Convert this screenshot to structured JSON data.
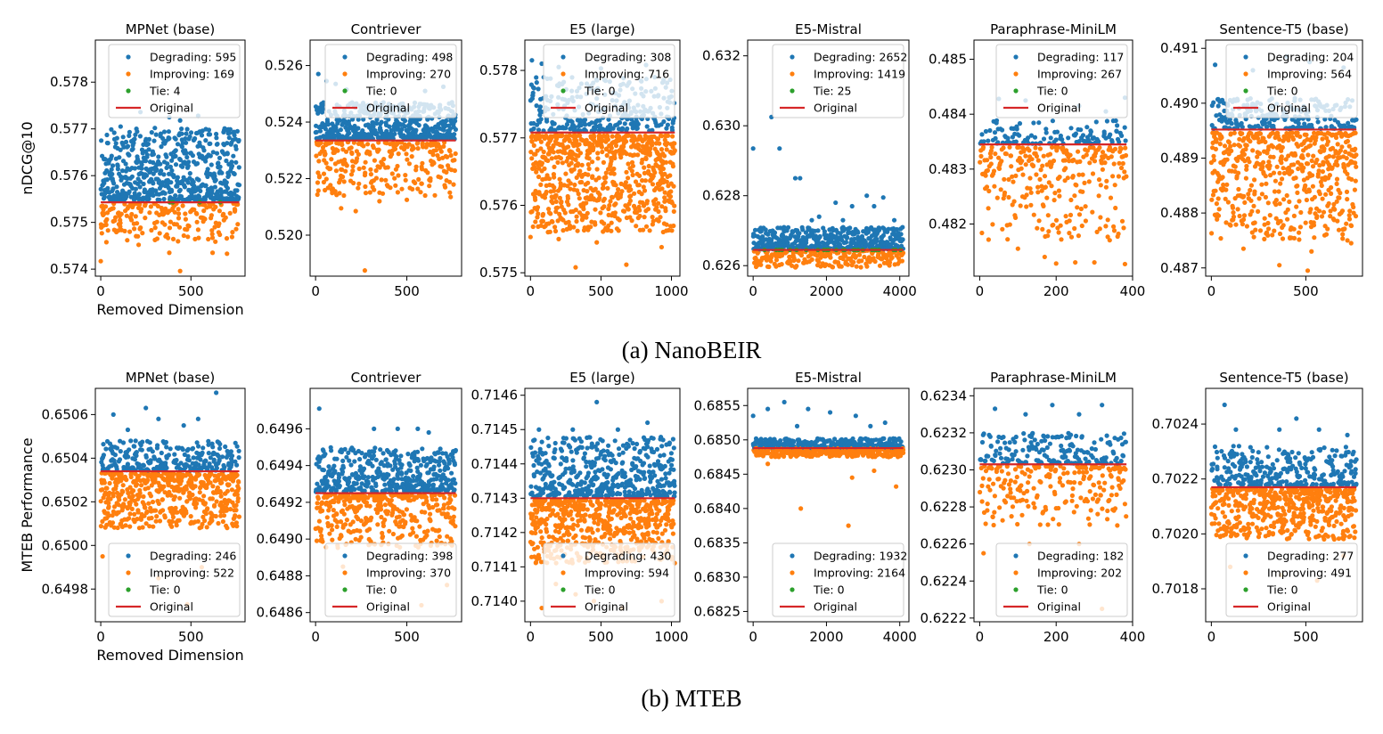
{
  "colors": {
    "degrading": "#1f77b4",
    "improving": "#ff7f0e",
    "tie": "#2ca02c",
    "original": "#d62728"
  },
  "captions": [
    "(a) NanoBEIR",
    "(b) MTEB"
  ],
  "chart_data": [
    {
      "type": "scatter",
      "row": 0,
      "col": 0,
      "title": "MPNet (base)",
      "xlabel": "Removed Dimension",
      "ylabel": "nDCG@10",
      "dims": 768,
      "original": 0.57543,
      "xlim": [
        -30,
        800
      ],
      "ylim": [
        0.57385,
        0.5789
      ],
      "xticks": [
        0,
        500
      ],
      "yticks": [
        0.574,
        0.575,
        0.576,
        0.577,
        0.578
      ],
      "ytick_decimals": 3,
      "up_max": 0.57703,
      "down_min": 0.57457,
      "counts": {
        "degrading": 595,
        "improving": 169,
        "tie": 4
      },
      "legend": [
        "Degrading: 595",
        "Improving: 169",
        "Tie: 4",
        "Original"
      ],
      "legend_loc": "upper right",
      "outliers_up": [
        [
          220,
          0.57736
        ],
        [
          380,
          0.57725
        ],
        [
          440,
          0.57718
        ],
        [
          540,
          0.57728
        ],
        [
          700,
          0.57698
        ],
        [
          110,
          0.57705
        ]
      ],
      "outliers_down": [
        [
          0,
          0.57417
        ],
        [
          440,
          0.57396
        ],
        [
          380,
          0.57435
        ],
        [
          620,
          0.57435
        ],
        [
          700,
          0.57433
        ],
        [
          210,
          0.57452
        ]
      ]
    },
    {
      "type": "scatter",
      "row": 0,
      "col": 1,
      "title": "Contriever",
      "xlabel": "",
      "ylabel": "",
      "dims": 768,
      "original": 0.52335,
      "xlim": [
        -30,
        800
      ],
      "ylim": [
        0.51855,
        0.5269
      ],
      "xticks": [
        0,
        500
      ],
      "yticks": [
        0.52,
        0.522,
        0.524,
        0.526
      ],
      "ytick_decimals": 3,
      "up_max": 0.5247,
      "down_min": 0.5214,
      "counts": {
        "degrading": 498,
        "improving": 270,
        "tie": 0
      },
      "legend": [
        "Degrading: 498",
        "Improving: 270",
        "Tie: 0",
        "Original"
      ],
      "legend_loc": "upper right",
      "outliers_up": [
        [
          15,
          0.5257
        ],
        [
          60,
          0.52545
        ],
        [
          110,
          0.52535
        ],
        [
          170,
          0.52515
        ],
        [
          600,
          0.5251
        ],
        [
          700,
          0.52525
        ]
      ],
      "outliers_down": [
        [
          270,
          0.51875
        ],
        [
          140,
          0.52095
        ],
        [
          220,
          0.52085
        ],
        [
          350,
          0.5212
        ],
        [
          500,
          0.52125
        ],
        [
          740,
          0.52135
        ]
      ]
    },
    {
      "type": "scatter",
      "row": 0,
      "col": 2,
      "title": "E5 (large)",
      "xlabel": "",
      "ylabel": "",
      "dims": 1024,
      "original": 0.57708,
      "xlim": [
        -40,
        1060
      ],
      "ylim": [
        0.57495,
        0.57845
      ],
      "xticks": [
        0,
        500,
        1000
      ],
      "yticks": [
        0.575,
        0.576,
        0.577,
        0.578
      ],
      "ytick_decimals": 3,
      "up_max": 0.5779,
      "down_min": 0.5756,
      "counts": {
        "degrading": 308,
        "improving": 716,
        "tie": 0
      },
      "legend": [
        "Degrading: 308",
        "Improving: 716",
        "Tie: 0",
        "Original"
      ],
      "legend_loc": "upper right",
      "outliers_up": [
        [
          10,
          0.57815
        ],
        [
          80,
          0.5781
        ],
        [
          200,
          0.57805
        ],
        [
          500,
          0.57803
        ],
        [
          820,
          0.57808
        ]
      ],
      "outliers_down": [
        [
          0,
          0.57553
        ],
        [
          320,
          0.57508
        ],
        [
          680,
          0.57512
        ],
        [
          930,
          0.57538
        ],
        [
          200,
          0.5755
        ],
        [
          470,
          0.57545
        ]
      ]
    },
    {
      "type": "scatter",
      "row": 0,
      "col": 3,
      "title": "E5-Mistral",
      "xlabel": "",
      "ylabel": "",
      "dims": 4096,
      "original": 0.62645,
      "xlim": [
        -150,
        4250
      ],
      "ylim": [
        0.6257,
        0.63245
      ],
      "xticks": [
        0,
        2000,
        4000
      ],
      "yticks": [
        0.626,
        0.628,
        0.63,
        0.632
      ],
      "ytick_decimals": 3,
      "up_max": 0.6271,
      "down_min": 0.62595,
      "counts": {
        "degrading": 2652,
        "improving": 1419,
        "tie": 25
      },
      "legend": [
        "Degrading: 2652",
        "Improving: 1419",
        "Tie: 25",
        "Original"
      ],
      "legend_loc": "upper right",
      "outliers_up": [
        [
          0,
          0.62935
        ],
        [
          500,
          0.63025
        ],
        [
          720,
          0.62935
        ],
        [
          1150,
          0.6285
        ],
        [
          1280,
          0.6285
        ],
        [
          1800,
          0.6274
        ],
        [
          2250,
          0.6278
        ],
        [
          2700,
          0.6277
        ],
        [
          3100,
          0.628
        ],
        [
          3300,
          0.6277
        ],
        [
          3550,
          0.62795
        ],
        [
          3850,
          0.6273
        ],
        [
          1600,
          0.6273
        ],
        [
          2450,
          0.6273
        ]
      ],
      "outliers_down": []
    },
    {
      "type": "scatter",
      "row": 0,
      "col": 4,
      "title": "Paraphrase-MiniLM",
      "xlabel": "",
      "ylabel": "",
      "dims": 384,
      "original": 0.48345,
      "xlim": [
        -15,
        400
      ],
      "ylim": [
        0.48105,
        0.48535
      ],
      "xticks": [
        0,
        200,
        400
      ],
      "yticks": [
        0.482,
        0.483,
        0.484,
        0.485
      ],
      "ytick_decimals": 3,
      "up_max": 0.4839,
      "down_min": 0.4817,
      "counts": {
        "degrading": 117,
        "improving": 267,
        "tie": 0
      },
      "legend": [
        "Degrading: 117",
        "Improving: 267",
        "Tie: 0",
        "Original"
      ],
      "legend_loc": "upper right",
      "outliers_up": [
        [
          50,
          0.48428
        ],
        [
          120,
          0.48425
        ],
        [
          260,
          0.48415
        ],
        [
          380,
          0.4843
        ],
        [
          330,
          0.48405
        ]
      ],
      "outliers_down": [
        [
          170,
          0.4814
        ],
        [
          200,
          0.48128
        ],
        [
          250,
          0.4813
        ],
        [
          300,
          0.4813
        ],
        [
          380,
          0.48127
        ],
        [
          100,
          0.48155
        ]
      ]
    },
    {
      "type": "scatter",
      "row": 0,
      "col": 5,
      "title": "Sentence-T5 (base)",
      "xlabel": "",
      "ylabel": "",
      "dims": 768,
      "original": 0.48952,
      "xlim": [
        -30,
        800
      ],
      "ylim": [
        0.48685,
        0.49115
      ],
      "xticks": [
        0,
        500
      ],
      "yticks": [
        0.487,
        0.488,
        0.489,
        0.49,
        0.491
      ],
      "ytick_decimals": 3,
      "up_max": 0.4901,
      "down_min": 0.4875,
      "counts": {
        "degrading": 204,
        "improving": 564,
        "tie": 0
      },
      "legend": [
        "Degrading: 204",
        "Improving: 564",
        "Tie: 0",
        "Original"
      ],
      "legend_loc": "upper right",
      "outliers_up": [
        [
          20,
          0.4907
        ],
        [
          220,
          0.4906
        ],
        [
          400,
          0.49085
        ],
        [
          520,
          0.49075
        ],
        [
          700,
          0.49065
        ]
      ],
      "outliers_down": [
        [
          360,
          0.48705
        ],
        [
          510,
          0.48695
        ],
        [
          530,
          0.4873
        ],
        [
          740,
          0.48745
        ],
        [
          170,
          0.48735
        ]
      ]
    },
    {
      "type": "scatter",
      "row": 1,
      "col": 0,
      "title": "MPNet (base)",
      "xlabel": "Removed Dimension",
      "ylabel": "MTEB Performance",
      "dims": 768,
      "original": 0.65034,
      "xlim": [
        -30,
        800
      ],
      "ylim": [
        0.64965,
        0.65072
      ],
      "xticks": [
        0,
        500
      ],
      "yticks": [
        0.6498,
        0.65,
        0.6502,
        0.6504,
        0.6506
      ],
      "ytick_decimals": 4,
      "up_max": 0.65048,
      "down_min": 0.65008,
      "counts": {
        "degrading": 246,
        "improving": 522,
        "tie": 0
      },
      "legend": [
        "Degrading: 246",
        "Improving: 522",
        "Tie: 0",
        "Original"
      ],
      "legend_loc": "lower right",
      "outliers_up": [
        [
          70,
          0.6506
        ],
        [
          250,
          0.65063
        ],
        [
          320,
          0.65058
        ],
        [
          540,
          0.65058
        ],
        [
          640,
          0.6507
        ],
        [
          460,
          0.65055
        ],
        [
          150,
          0.65053
        ]
      ],
      "outliers_down": [
        [
          10,
          0.64995
        ],
        [
          480,
          0.64973
        ],
        [
          320,
          0.64985
        ],
        [
          560,
          0.6499
        ]
      ]
    },
    {
      "type": "scatter",
      "row": 1,
      "col": 1,
      "title": "Contriever",
      "xlabel": "",
      "ylabel": "",
      "dims": 768,
      "original": 0.64925,
      "xlim": [
        -30,
        800
      ],
      "ylim": [
        0.64855,
        0.64982
      ],
      "xticks": [
        0,
        500
      ],
      "yticks": [
        0.6486,
        0.6488,
        0.649,
        0.6492,
        0.6494,
        0.6496
      ],
      "ytick_decimals": 4,
      "up_max": 0.6495,
      "down_min": 0.64895,
      "counts": {
        "degrading": 398,
        "improving": 370,
        "tie": 0
      },
      "legend": [
        "Degrading: 398",
        "Improving: 370",
        "Tie: 0",
        "Original"
      ],
      "legend_loc": "lower right",
      "outliers_up": [
        [
          20,
          0.64971
        ],
        [
          320,
          0.6496
        ],
        [
          450,
          0.6496
        ],
        [
          560,
          0.6496
        ],
        [
          620,
          0.64958
        ]
      ],
      "outliers_down": [
        [
          580,
          0.64864
        ],
        [
          720,
          0.64875
        ],
        [
          150,
          0.64885
        ]
      ]
    },
    {
      "type": "scatter",
      "row": 1,
      "col": 2,
      "title": "E5 (large)",
      "xlabel": "",
      "ylabel": "",
      "dims": 1024,
      "original": 0.7143,
      "xlim": [
        -40,
        1060
      ],
      "ylim": [
        0.71394,
        0.71462
      ],
      "xticks": [
        0,
        500,
        1000
      ],
      "yticks": [
        0.714,
        0.7141,
        0.7142,
        0.7143,
        0.7144,
        0.7145,
        0.7146
      ],
      "ytick_decimals": 4,
      "up_max": 0.71448,
      "down_min": 0.71411,
      "counts": {
        "degrading": 430,
        "improving": 594,
        "tie": 0
      },
      "legend": [
        "Degrading: 430",
        "Improving: 594",
        "Tie: 0",
        "Original"
      ],
      "legend_loc": "lower right",
      "outliers_up": [
        [
          470,
          0.71458
        ],
        [
          830,
          0.71452
        ],
        [
          60,
          0.7145
        ],
        [
          300,
          0.7145
        ],
        [
          620,
          0.7145
        ]
      ],
      "outliers_down": [
        [
          80,
          0.71398
        ],
        [
          320,
          0.71402
        ],
        [
          450,
          0.714
        ],
        [
          650,
          0.71398
        ],
        [
          930,
          0.714
        ],
        [
          180,
          0.71405
        ]
      ]
    },
    {
      "type": "scatter",
      "row": 1,
      "col": 3,
      "title": "E5-Mistral",
      "xlabel": "",
      "ylabel": "",
      "dims": 4096,
      "original": 0.68488,
      "xlim": [
        -150,
        4250
      ],
      "ylim": [
        0.68235,
        0.68575
      ],
      "xticks": [
        0,
        2000,
        4000
      ],
      "yticks": [
        0.6825,
        0.683,
        0.6835,
        0.684,
        0.6845,
        0.685,
        0.6855
      ],
      "ytick_decimals": 4,
      "up_max": 0.68502,
      "down_min": 0.68475,
      "counts": {
        "degrading": 1932,
        "improving": 2164,
        "tie": 0
      },
      "legend": [
        "Degrading: 1932",
        "Improving: 2164",
        "Tie: 0",
        "Original"
      ],
      "legend_loc": "lower right",
      "outliers_up": [
        [
          0,
          0.68535
        ],
        [
          400,
          0.68545
        ],
        [
          850,
          0.68555
        ],
        [
          1500,
          0.68545
        ],
        [
          2100,
          0.6854
        ],
        [
          2800,
          0.68535
        ],
        [
          3600,
          0.68525
        ],
        [
          1200,
          0.6852
        ],
        [
          3200,
          0.6852
        ]
      ],
      "outliers_down": [
        [
          400,
          0.68465
        ],
        [
          1300,
          0.684
        ],
        [
          2600,
          0.68375
        ],
        [
          2700,
          0.68445
        ],
        [
          3900,
          0.68432
        ],
        [
          3300,
          0.68455
        ]
      ]
    },
    {
      "type": "scatter",
      "row": 1,
      "col": 4,
      "title": "Paraphrase-MiniLM",
      "xlabel": "",
      "ylabel": "",
      "dims": 384,
      "original": 0.62303,
      "xlim": [
        -15,
        400
      ],
      "ylim": [
        0.62218,
        0.62344
      ],
      "xticks": [
        0,
        200,
        400
      ],
      "yticks": [
        0.6222,
        0.6224,
        0.6226,
        0.6228,
        0.623,
        0.6232,
        0.6234
      ],
      "ytick_decimals": 4,
      "up_max": 0.6232,
      "down_min": 0.6227,
      "counts": {
        "degrading": 182,
        "improving": 202,
        "tie": 0
      },
      "legend": [
        "Degrading: 182",
        "Improving: 202",
        "Tie: 0",
        "Original"
      ],
      "legend_loc": "lower right",
      "outliers_up": [
        [
          40,
          0.62333
        ],
        [
          190,
          0.62335
        ],
        [
          260,
          0.6233
        ],
        [
          320,
          0.62335
        ],
        [
          120,
          0.6233
        ]
      ],
      "outliers_down": [
        [
          10,
          0.62255
        ],
        [
          320,
          0.62225
        ],
        [
          260,
          0.6226
        ],
        [
          360,
          0.6227
        ],
        [
          130,
          0.6226
        ]
      ]
    },
    {
      "type": "scatter",
      "row": 1,
      "col": 5,
      "title": "Sentence-T5 (base)",
      "xlabel": "",
      "ylabel": "",
      "dims": 768,
      "original": 0.70217,
      "xlim": [
        -30,
        800
      ],
      "ylim": [
        0.70168,
        0.70253
      ],
      "xticks": [
        0,
        500
      ],
      "yticks": [
        0.7018,
        0.702,
        0.7022,
        0.7024
      ],
      "ytick_decimals": 4,
      "up_max": 0.70232,
      "down_min": 0.70198,
      "counts": {
        "degrading": 277,
        "improving": 491,
        "tie": 0
      },
      "legend": [
        "Degrading: 277",
        "Improving: 491",
        "Tie: 0",
        "Original"
      ],
      "legend_loc": "lower right",
      "outliers_up": [
        [
          70,
          0.70247
        ],
        [
          450,
          0.70242
        ],
        [
          130,
          0.70238
        ],
        [
          360,
          0.70238
        ],
        [
          570,
          0.70238
        ],
        [
          720,
          0.70236
        ]
      ],
      "outliers_down": [
        [
          100,
          0.70188
        ],
        [
          370,
          0.70185
        ],
        [
          560,
          0.70183
        ],
        [
          700,
          0.70192
        ]
      ]
    }
  ]
}
